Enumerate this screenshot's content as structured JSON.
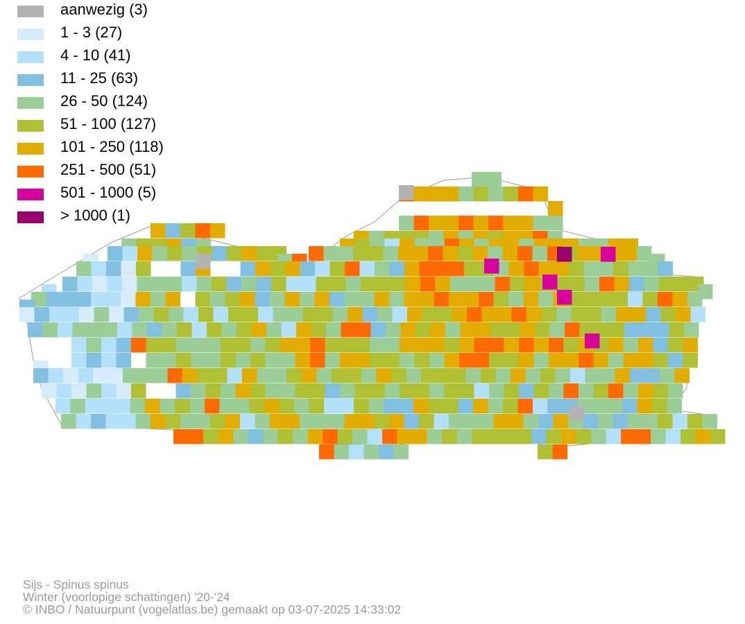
{
  "legend": {
    "items": [
      {
        "label": "aanwezig (3)",
        "color": "#b3b3b3"
      },
      {
        "label": "1 - 3 (27)",
        "color": "#d6ecfb"
      },
      {
        "label": "4 - 10 (41)",
        "color": "#b3e1fb"
      },
      {
        "label": "11 - 25 (63)",
        "color": "#82c0e2"
      },
      {
        "label": "26 - 50 (124)",
        "color": "#9bcd97"
      },
      {
        "label": "51 - 100 (127)",
        "color": "#afc032"
      },
      {
        "label": "101 - 250 (118)",
        "color": "#e3ad00"
      },
      {
        "label": "251 - 500 (51)",
        "color": "#ff6a00"
      },
      {
        "label": "501 - 1000 (5)",
        "color": "#d9019d"
      },
      {
        "label": "> 1000 (1)",
        "color": "#99006c"
      }
    ]
  },
  "footer": {
    "species": "Sijs - Spinus spinus",
    "period": "Winter (voorlopige schattingen) '20-'24",
    "credit": "© INBO / Natuurpunt (vogelatlas.be) gemaakt op 03-07-2025 14:33:02"
  }
}
